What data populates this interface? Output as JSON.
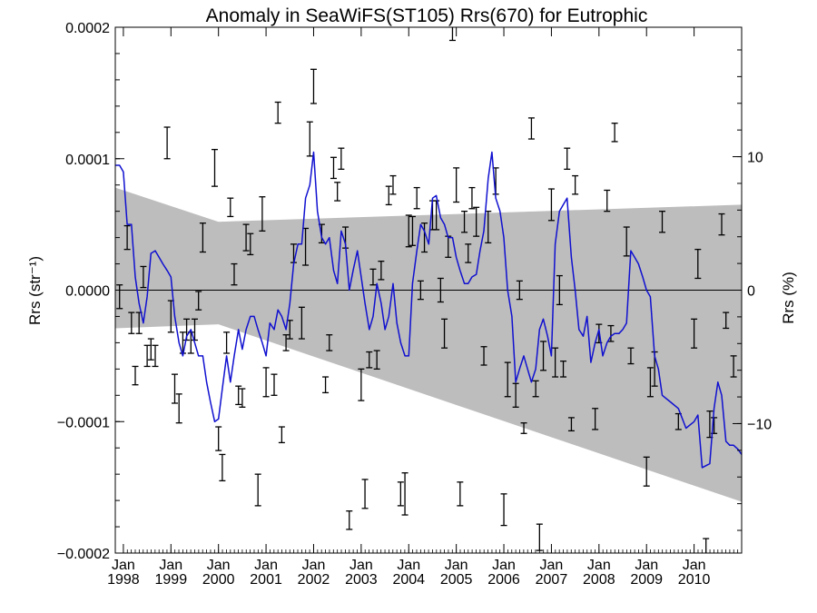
{
  "chart_data": {
    "type": "line",
    "title": "Anomaly in SeaWiFS(ST105) Rrs(670) for Eutrophic",
    "ylabel_left": "Rrs (str⁻¹)",
    "ylabel_right": "Rrs (%)",
    "xlim": [
      1997.83,
      2011.0
    ],
    "ylim": [
      -0.0002,
      0.0002
    ],
    "y_right_lim_percent": [
      -19.7,
      19.7
    ],
    "x_ticks": [
      {
        "x": 1998.0,
        "top": "Jan",
        "bottom": "1998"
      },
      {
        "x": 1999.0,
        "top": "Jan",
        "bottom": "1999"
      },
      {
        "x": 2000.0,
        "top": "Jan",
        "bottom": "2000"
      },
      {
        "x": 2001.0,
        "top": "Jan",
        "bottom": "2001"
      },
      {
        "x": 2002.0,
        "top": "Jan",
        "bottom": "2002"
      },
      {
        "x": 2003.0,
        "top": "Jan",
        "bottom": "2003"
      },
      {
        "x": 2004.0,
        "top": "Jan",
        "bottom": "2004"
      },
      {
        "x": 2005.0,
        "top": "Jan",
        "bottom": "2005"
      },
      {
        "x": 2006.0,
        "top": "Jan",
        "bottom": "2006"
      },
      {
        "x": 2007.0,
        "top": "Jan",
        "bottom": "2007"
      },
      {
        "x": 2008.0,
        "top": "Jan",
        "bottom": "2008"
      },
      {
        "x": 2009.0,
        "top": "Jan",
        "bottom": "2009"
      },
      {
        "x": 2010.0,
        "top": "Jan",
        "bottom": "2010"
      }
    ],
    "y_ticks_left": [
      {
        "value": 0.0002,
        "label": "0.0002"
      },
      {
        "value": 0.0001,
        "label": "0.0001"
      },
      {
        "value": 0.0,
        "label": "0.0000"
      },
      {
        "value": -0.0001,
        "label": "−0.0001"
      },
      {
        "value": -0.0002,
        "label": "−0.0002"
      }
    ],
    "y_ticks_right": [
      {
        "value": 10,
        "label": "10"
      },
      {
        "value": 0,
        "label": "0"
      },
      {
        "value": -10,
        "label": "−10"
      }
    ],
    "zero_line": 0.0,
    "colors": {
      "line": "#1010d0",
      "band": "#bdbdbd",
      "errorbar": "#000000",
      "axis": "#000000"
    },
    "gray_band": {
      "upper": [
        [
          1997.83,
          7.8e-05
        ],
        [
          2000.0,
          5.2e-05
        ],
        [
          2011.0,
          6.5e-05
        ]
      ],
      "lower": [
        [
          1997.83,
          -2.9e-05
        ],
        [
          2000.0,
          -2.6e-05
        ],
        [
          2011.0,
          -0.000161
        ]
      ]
    },
    "line_series": {
      "name": "",
      "points": [
        [
          1997.83,
          9.5e-05
        ],
        [
          1997.92,
          9.5e-05
        ],
        [
          1998.0,
          9e-05
        ],
        [
          1998.08,
          5e-05
        ],
        [
          1998.17,
          5e-05
        ],
        [
          1998.25,
          1e-05
        ],
        [
          1998.33,
          -1e-05
        ],
        [
          1998.42,
          -2.5e-05
        ],
        [
          1998.5,
          -5e-06
        ],
        [
          1998.58,
          2.8e-05
        ],
        [
          1998.67,
          3e-05
        ],
        [
          1998.75,
          2.5e-05
        ],
        [
          1998.83,
          2e-05
        ],
        [
          1998.92,
          1.5e-05
        ],
        [
          1999.0,
          1e-05
        ],
        [
          1999.08,
          -2e-05
        ],
        [
          1999.17,
          -4e-05
        ],
        [
          1999.25,
          -5e-05
        ],
        [
          1999.33,
          -3.5e-05
        ],
        [
          1999.42,
          -3e-05
        ],
        [
          1999.5,
          -4e-05
        ],
        [
          1999.58,
          -5e-05
        ],
        [
          1999.67,
          -5e-05
        ],
        [
          1999.75,
          -7e-05
        ],
        [
          1999.83,
          -8.5e-05
        ],
        [
          1999.92,
          -0.0001
        ],
        [
          2000.0,
          -9.8e-05
        ],
        [
          2000.08,
          -7.5e-05
        ],
        [
          2000.17,
          -5e-05
        ],
        [
          2000.25,
          -7e-05
        ],
        [
          2000.33,
          -5e-05
        ],
        [
          2000.42,
          -3e-05
        ],
        [
          2000.5,
          -4.5e-05
        ],
        [
          2000.58,
          -3e-05
        ],
        [
          2000.67,
          -2e-05
        ],
        [
          2000.75,
          -2e-05
        ],
        [
          2000.83,
          -3e-05
        ],
        [
          2000.92,
          -4e-05
        ],
        [
          2001.0,
          -5e-05
        ],
        [
          2001.08,
          -2.5e-05
        ],
        [
          2001.17,
          -3e-05
        ],
        [
          2001.25,
          -1.5e-05
        ],
        [
          2001.33,
          -2e-05
        ],
        [
          2001.42,
          -3e-05
        ],
        [
          2001.5,
          -1e-05
        ],
        [
          2001.58,
          2e-05
        ],
        [
          2001.67,
          3.5e-05
        ],
        [
          2001.75,
          3.5e-05
        ],
        [
          2001.83,
          7e-05
        ],
        [
          2001.92,
          8e-05
        ],
        [
          2002.0,
          0.000105
        ],
        [
          2002.08,
          6e-05
        ],
        [
          2002.17,
          4e-05
        ],
        [
          2002.25,
          3.5e-05
        ],
        [
          2002.33,
          4e-05
        ],
        [
          2002.42,
          1.5e-05
        ],
        [
          2002.5,
          5e-06
        ],
        [
          2002.58,
          4.5e-05
        ],
        [
          2002.67,
          3.5e-05
        ],
        [
          2002.75,
          0.0
        ],
        [
          2002.83,
          1.5e-05
        ],
        [
          2002.92,
          3e-05
        ],
        [
          2003.0,
          1e-05
        ],
        [
          2003.08,
          -1e-05
        ],
        [
          2003.17,
          -3e-05
        ],
        [
          2003.25,
          -2e-05
        ],
        [
          2003.33,
          5e-06
        ],
        [
          2003.42,
          -1e-05
        ],
        [
          2003.5,
          -3e-05
        ],
        [
          2003.58,
          -2e-05
        ],
        [
          2003.67,
          5e-06
        ],
        [
          2003.75,
          -2.5e-05
        ],
        [
          2003.83,
          -4e-05
        ],
        [
          2003.92,
          -5e-05
        ],
        [
          2004.0,
          -5e-05
        ],
        [
          2004.08,
          5e-06
        ],
        [
          2004.17,
          3e-05
        ],
        [
          2004.25,
          5e-05
        ],
        [
          2004.33,
          4.5e-05
        ],
        [
          2004.42,
          3.5e-05
        ],
        [
          2004.5,
          7e-05
        ],
        [
          2004.58,
          7.2e-05
        ],
        [
          2004.67,
          5.5e-05
        ],
        [
          2004.75,
          5e-05
        ],
        [
          2004.83,
          4e-05
        ],
        [
          2004.92,
          4e-05
        ],
        [
          2005.0,
          2.5e-05
        ],
        [
          2005.08,
          1.5e-05
        ],
        [
          2005.17,
          5e-06
        ],
        [
          2005.25,
          5e-06
        ],
        [
          2005.33,
          1e-05
        ],
        [
          2005.42,
          1.2e-05
        ],
        [
          2005.5,
          3e-05
        ],
        [
          2005.58,
          4.5e-05
        ],
        [
          2005.67,
          8.5e-05
        ],
        [
          2005.75,
          0.000105
        ],
        [
          2005.83,
          7e-05
        ],
        [
          2005.92,
          6e-05
        ],
        [
          2006.0,
          4e-05
        ],
        [
          2006.08,
          0.0
        ],
        [
          2006.17,
          -2e-05
        ],
        [
          2006.25,
          -7e-05
        ],
        [
          2006.33,
          -6e-05
        ],
        [
          2006.42,
          -5e-05
        ],
        [
          2006.5,
          -6e-05
        ],
        [
          2006.58,
          -7e-05
        ],
        [
          2006.67,
          -6e-05
        ],
        [
          2006.75,
          -3e-05
        ],
        [
          2006.83,
          -2.2e-05
        ],
        [
          2006.92,
          -3.5e-05
        ],
        [
          2007.0,
          -5e-05
        ],
        [
          2007.08,
          3.5e-05
        ],
        [
          2007.17,
          6e-05
        ],
        [
          2007.25,
          6.5e-05
        ],
        [
          2007.33,
          7e-05
        ],
        [
          2007.42,
          2.5e-05
        ],
        [
          2007.5,
          0.0
        ],
        [
          2007.58,
          -3e-05
        ],
        [
          2007.67,
          -3.5e-05
        ],
        [
          2007.75,
          -2e-05
        ],
        [
          2007.83,
          -5.5e-05
        ],
        [
          2007.92,
          -4e-05
        ],
        [
          2008.0,
          -3e-05
        ],
        [
          2008.08,
          -5e-05
        ],
        [
          2008.17,
          -4e-05
        ],
        [
          2008.25,
          -3.5e-05
        ],
        [
          2008.33,
          -3.3e-05
        ],
        [
          2008.42,
          -3.3e-05
        ],
        [
          2008.5,
          -3e-05
        ],
        [
          2008.58,
          -2.5e-05
        ],
        [
          2008.67,
          3e-05
        ],
        [
          2008.75,
          2.5e-05
        ],
        [
          2008.83,
          2e-05
        ],
        [
          2008.92,
          1e-05
        ],
        [
          2009.0,
          0.0
        ],
        [
          2009.08,
          -5e-06
        ],
        [
          2009.17,
          -5e-05
        ],
        [
          2009.25,
          -6e-05
        ],
        [
          2009.33,
          -8e-05
        ],
        [
          2009.5,
          -8.5e-05
        ],
        [
          2009.67,
          -9e-05
        ],
        [
          2009.83,
          -0.000105
        ],
        [
          2010.0,
          -0.0001
        ],
        [
          2010.08,
          -9.5e-05
        ],
        [
          2010.17,
          -0.000135
        ],
        [
          2010.33,
          -0.000132
        ],
        [
          2010.42,
          -9e-05
        ],
        [
          2010.5,
          -7e-05
        ],
        [
          2010.58,
          -8e-05
        ],
        [
          2010.67,
          -0.000115
        ],
        [
          2010.75,
          -0.000118
        ],
        [
          2010.83,
          -0.000118
        ],
        [
          2010.92,
          -0.000121
        ],
        [
          2011.0,
          -0.000125
        ]
      ]
    },
    "error_bars": [
      [
        1997.92,
        -5e-06,
        9e-06
      ],
      [
        1998.08,
        4e-05,
        9e-06
      ],
      [
        1998.17,
        -2.5e-05,
        8e-06
      ],
      [
        1998.25,
        -6.5e-05,
        7e-06
      ],
      [
        1998.33,
        -2.5e-05,
        8e-06
      ],
      [
        1998.42,
        1e-05,
        8e-06
      ],
      [
        1998.5,
        -5e-05,
        8e-06
      ],
      [
        1998.58,
        -4.5e-05,
        8e-06
      ],
      [
        1998.67,
        -5e-05,
        8e-06
      ],
      [
        1998.92,
        0.000112,
        1.2e-05
      ],
      [
        1999.0,
        -2e-05,
        1.2e-05
      ],
      [
        1999.08,
        -7.5e-05,
        1.1e-05
      ],
      [
        1999.17,
        -9e-05,
        1.1e-05
      ],
      [
        1999.25,
        -4e-05,
        8e-06
      ],
      [
        1999.33,
        -3e-05,
        8e-06
      ],
      [
        1999.42,
        -4e-05,
        8e-06
      ],
      [
        1999.5,
        -3e-05,
        8e-06
      ],
      [
        1999.58,
        -8e-06,
        7e-06
      ],
      [
        1999.67,
        4e-05,
        1.1e-05
      ],
      [
        1999.92,
        9.3e-05,
        1.4e-05
      ],
      [
        2000.0,
        -0.000113,
        9e-06
      ],
      [
        2000.08,
        -0.000135,
        1e-05
      ],
      [
        2000.17,
        -4e-05,
        8e-06
      ],
      [
        2000.25,
        6.3e-05,
        7e-06
      ],
      [
        2000.33,
        1.2e-05,
        8e-06
      ],
      [
        2000.42,
        -8e-05,
        7e-06
      ],
      [
        2000.5,
        -8.2e-05,
        7e-06
      ],
      [
        2000.58,
        4e-05,
        1e-05
      ],
      [
        2000.67,
        3.5e-05,
        8e-06
      ],
      [
        2000.83,
        -0.000152,
        1.2e-05
      ],
      [
        2000.92,
        5.8e-05,
        1.3e-05
      ],
      [
        2001.0,
        -7e-05,
        1.1e-05
      ],
      [
        2001.17,
        -7.2e-05,
        8e-06
      ],
      [
        2001.25,
        0.000135,
        8e-06
      ],
      [
        2001.33,
        -0.00011,
        6e-06
      ],
      [
        2001.42,
        -4e-05,
        6e-06
      ],
      [
        2001.5,
        -3e-05,
        7e-06
      ],
      [
        2001.58,
        2.8e-05,
        7e-06
      ],
      [
        2001.75,
        -2.5e-05,
        1.2e-05
      ],
      [
        2001.83,
        3.3e-05,
        1.4e-05
      ],
      [
        2001.92,
        0.000115,
        1.3e-05
      ],
      [
        2002.0,
        0.000155,
        1.3e-05
      ],
      [
        2002.17,
        4.3e-05,
        7e-06
      ],
      [
        2002.25,
        -7.2e-05,
        6e-06
      ],
      [
        2002.33,
        -4e-05,
        6e-06
      ],
      [
        2002.42,
        9.3e-05,
        8e-06
      ],
      [
        2002.5,
        7.5e-05,
        7e-06
      ],
      [
        2002.58,
        0.0001,
        8e-06
      ],
      [
        2002.67,
        4e-05,
        8e-06
      ],
      [
        2002.75,
        -0.000175,
        7e-06
      ],
      [
        2003.0,
        -7.2e-05,
        1.2e-05
      ],
      [
        2003.08,
        -0.000155,
        1.1e-05
      ],
      [
        2003.17,
        -5.3e-05,
        6e-06
      ],
      [
        2003.25,
        1e-05,
        6e-06
      ],
      [
        2003.33,
        -5.3e-05,
        7e-06
      ],
      [
        2003.42,
        1.5e-05,
        7e-06
      ],
      [
        2003.58,
        7.2e-05,
        7e-06
      ],
      [
        2003.67,
        8e-05,
        7e-06
      ],
      [
        2003.83,
        -0.000155,
        9e-06
      ],
      [
        2003.92,
        -0.000155,
        1.6e-05
      ],
      [
        2004.0,
        4.5e-05,
        1.2e-05
      ],
      [
        2004.08,
        4.5e-05,
        1.1e-05
      ],
      [
        2004.17,
        7e-05,
        8e-06
      ],
      [
        2004.25,
        0.0,
        7e-06
      ],
      [
        2004.33,
        4e-05,
        1.1e-05
      ],
      [
        2004.5,
        5.7e-05,
        1.1e-05
      ],
      [
        2004.58,
        5.7e-05,
        1.1e-05
      ],
      [
        2004.67,
        0.0,
        9e-06
      ],
      [
        2004.75,
        -3.3e-05,
        1.1e-05
      ],
      [
        2004.83,
        3.3e-05,
        8e-06
      ],
      [
        2004.92,
        0.0002,
        1e-05
      ],
      [
        2005.0,
        8e-05,
        1.3e-05
      ],
      [
        2005.08,
        -0.000155,
        9e-06
      ],
      [
        2005.17,
        5.2e-05,
        8e-06
      ],
      [
        2005.25,
        2.8e-05,
        7e-06
      ],
      [
        2005.33,
        7e-05,
        8e-06
      ],
      [
        2005.42,
        5.2e-05,
        1.1e-05
      ],
      [
        2005.58,
        -5e-05,
        7e-06
      ],
      [
        2005.67,
        4.8e-05,
        1.2e-05
      ],
      [
        2005.83,
        8.3e-05,
        1e-05
      ],
      [
        2006.0,
        -0.000167,
        1.2e-05
      ],
      [
        2006.08,
        -6.8e-05,
        1.3e-05
      ],
      [
        2006.25,
        -8e-05,
        9e-06
      ],
      [
        2006.33,
        0.0,
        7e-06
      ],
      [
        2006.42,
        -0.000105,
        4e-06
      ],
      [
        2006.58,
        0.000123,
        8e-06
      ],
      [
        2006.67,
        -7.5e-05,
        6e-06
      ],
      [
        2006.75,
        -0.000188,
        1e-05
      ],
      [
        2006.83,
        -5e-05,
        1.1e-05
      ],
      [
        2007.0,
        6.5e-05,
        1.2e-05
      ],
      [
        2007.08,
        -5.5e-05,
        1.1e-05
      ],
      [
        2007.17,
        0.0,
        1.1e-05
      ],
      [
        2007.25,
        -6e-05,
        6e-06
      ],
      [
        2007.33,
        0.0001,
        8e-06
      ],
      [
        2007.42,
        -0.000102,
        5e-06
      ],
      [
        2007.5,
        8e-05,
        7e-06
      ],
      [
        2007.92,
        -9.8e-05,
        8e-06
      ],
      [
        2008.0,
        -3.3e-05,
        7e-06
      ],
      [
        2008.17,
        6.8e-05,
        8e-06
      ],
      [
        2008.25,
        -3.3e-05,
        6e-06
      ],
      [
        2008.33,
        0.00012,
        7e-06
      ],
      [
        2008.58,
        3.7e-05,
        1.1e-05
      ],
      [
        2008.67,
        -5e-05,
        6e-06
      ],
      [
        2009.0,
        -0.000138,
        1.1e-05
      ],
      [
        2009.08,
        -7e-05,
        1.1e-05
      ],
      [
        2009.17,
        -6e-05,
        1.3e-05
      ],
      [
        2009.33,
        5.2e-05,
        8e-06
      ],
      [
        2009.67,
        -0.0001,
        6e-06
      ],
      [
        2010.0,
        -3.3e-05,
        1.1e-05
      ],
      [
        2010.08,
        2e-05,
        1.1e-05
      ],
      [
        2010.25,
        -0.000197,
        8e-06
      ],
      [
        2010.33,
        -0.000102,
        1e-05
      ],
      [
        2010.42,
        -0.000103,
        6e-06
      ],
      [
        2010.58,
        5e-05,
        8e-06
      ],
      [
        2010.67,
        -2.3e-05,
        6e-06
      ],
      [
        2010.83,
        -5.8e-05,
        8e-06
      ]
    ]
  }
}
